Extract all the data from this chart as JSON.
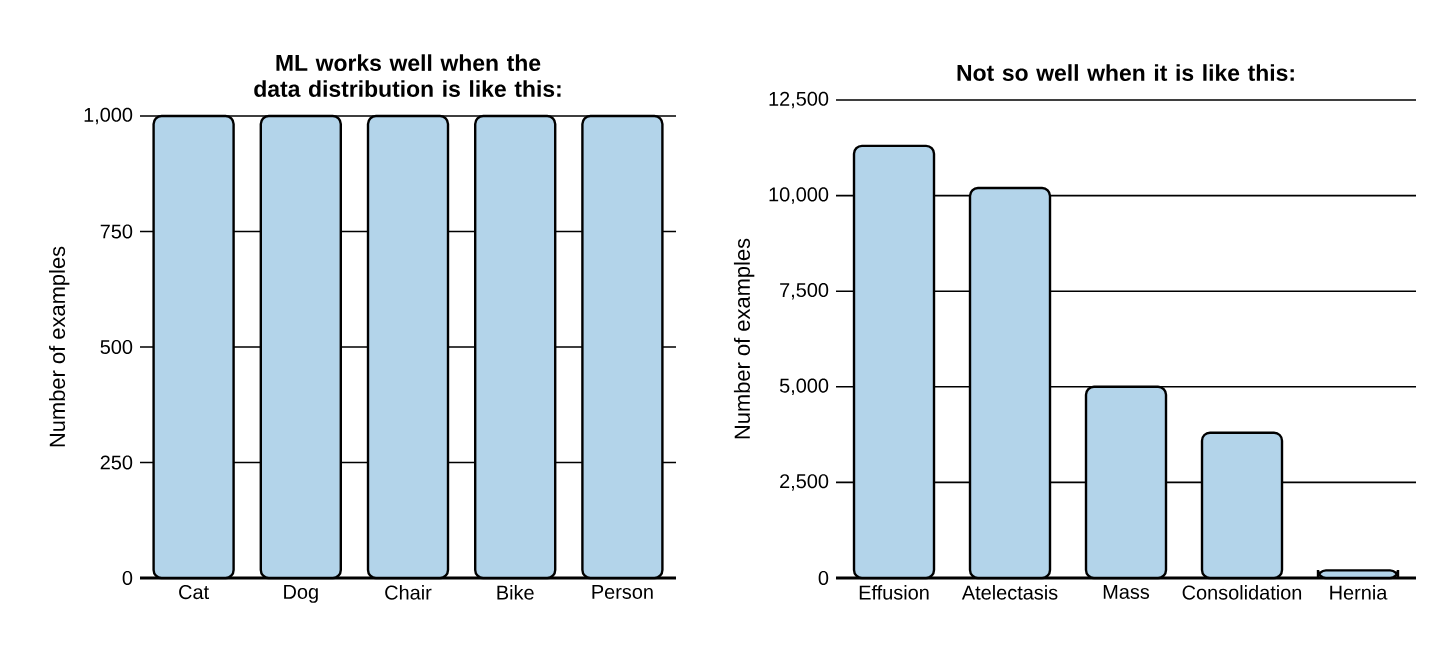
{
  "chart_data": [
    {
      "type": "bar",
      "title": "ML works well when the data distribution is like this:",
      "ylabel": "Number of examples",
      "categories": [
        "Cat",
        "Dog",
        "Chair",
        "Bike",
        "Person"
      ],
      "values": [
        1000,
        1000,
        1000,
        1000,
        1000
      ],
      "color": "#b3d4ea",
      "ylim": [
        0,
        1000
      ],
      "yticks": [
        0,
        250,
        500,
        750,
        {
          "value": 1000,
          "label": "1,000"
        }
      ],
      "grid": "y"
    },
    {
      "type": "bar",
      "title": "Not so well when it is like this:",
      "ylabel": "Number of examples",
      "categories": [
        "Effusion",
        "Atelectasis",
        "Mass",
        "Consolidation",
        "Hernia"
      ],
      "values": [
        11300,
        10200,
        5000,
        3800,
        200
      ],
      "color": "#b3d4ea",
      "ylim": [
        0,
        12500
      ],
      "yticks": [
        0,
        {
          "value": 2500,
          "label": "2,500"
        },
        {
          "value": 5000,
          "label": "5,000"
        },
        {
          "value": 7500,
          "label": "7,500"
        },
        {
          "value": 10000,
          "label": "10,000"
        },
        {
          "value": 12500,
          "label": "12,500"
        }
      ],
      "grid": "y"
    }
  ]
}
